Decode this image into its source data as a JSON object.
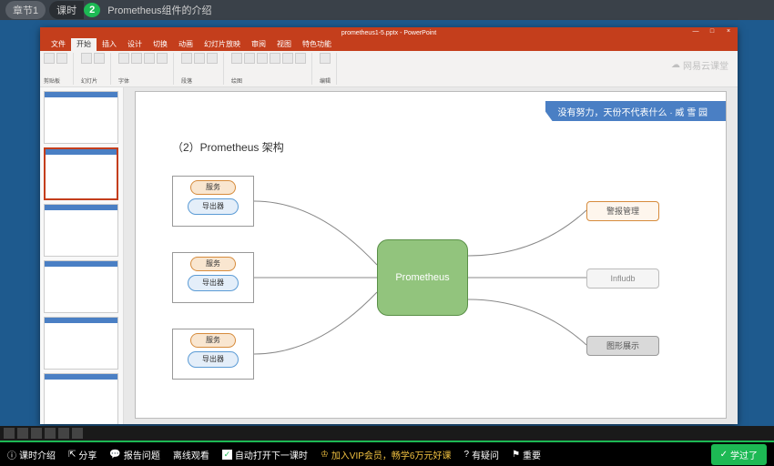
{
  "topbar": {
    "chapter": "章节1",
    "lesson": "课时",
    "num": "2",
    "title": "Prometheus组件的介绍"
  },
  "ppt": {
    "filename": "prometheus1-5.pptx - PowerPoint",
    "tabs": [
      "文件",
      "开始",
      "插入",
      "设计",
      "切换",
      "动画",
      "幻灯片放映",
      "审阅",
      "视图",
      "特色功能"
    ],
    "active_tab": 1,
    "ribbon_groups": [
      "剪贴板",
      "幻灯片",
      "字体",
      "段落",
      "绘图",
      "编辑"
    ],
    "watermark": "网易云课堂"
  },
  "slide": {
    "banner": "没有努力，天份不代表什么  · 威 雪 园",
    "title": "（2）Prometheus 架构",
    "left_groups": [
      {
        "svc": "服务",
        "exp": "导出器"
      },
      {
        "svc": "服务",
        "exp": "导出器"
      },
      {
        "svc": "服务",
        "exp": "导出器"
      }
    ],
    "center": "Prometheus",
    "right": [
      {
        "label": "警报管理",
        "cls": "rn1"
      },
      {
        "label": "Infludb",
        "cls": "rn2"
      },
      {
        "label": "图形展示",
        "cls": "rn3"
      }
    ],
    "colors": {
      "banner": "#4a7fc4",
      "center": "#92c47d",
      "svc_border": "#d68b3c",
      "exp_border": "#5b9bd5"
    }
  },
  "bottombar": {
    "intro": "课时介绍",
    "share": "分享",
    "report": "报告问题",
    "offline": "离线观看",
    "autonext": "自动打开下一课时",
    "vip": "加入VIP会员，畅学6万元好课",
    "question": "有疑问",
    "important": "重要",
    "done": "学过了"
  }
}
